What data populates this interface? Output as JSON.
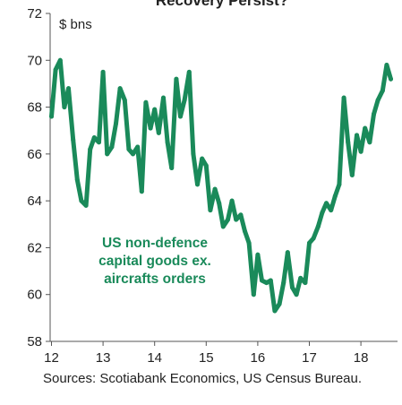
{
  "chart_data": {
    "type": "line",
    "title": "Recovery Persist?",
    "ylabel": "$ bns",
    "xlim": [
      12,
      18.67
    ],
    "ylim": [
      58,
      72
    ],
    "xticks": [
      12,
      13,
      14,
      15,
      16,
      17,
      18
    ],
    "xtick_labels": [
      "12",
      "13",
      "14",
      "15",
      "16",
      "17",
      "18"
    ],
    "yticks": [
      58,
      60,
      62,
      64,
      66,
      68,
      70,
      72
    ],
    "ytick_labels": [
      "58",
      "60",
      "62",
      "64",
      "66",
      "68",
      "70",
      "72"
    ],
    "annotation": [
      "US non-defence",
      "capital goods ex.",
      "aircrafts orders"
    ],
    "colors": {
      "line": "#1a8a5a",
      "annotation": "#1a8a5a",
      "axis": "#555555"
    },
    "grid": false,
    "series": [
      {
        "x": [
          12.0,
          12.08,
          12.17,
          12.25,
          12.33,
          12.42,
          12.5,
          12.58,
          12.67,
          12.75,
          12.83,
          12.92,
          13.0,
          13.08,
          13.17,
          13.25,
          13.33,
          13.42,
          13.5,
          13.58,
          13.67,
          13.75,
          13.83,
          13.92,
          14.0,
          14.08,
          14.17,
          14.25,
          14.33,
          14.42,
          14.5,
          14.58,
          14.67,
          14.75,
          14.83,
          14.92,
          15.0,
          15.08,
          15.17,
          15.25,
          15.33,
          15.42,
          15.5,
          15.58,
          15.67,
          15.75,
          15.83,
          15.92,
          16.0,
          16.08,
          16.17,
          16.25,
          16.33,
          16.42,
          16.5,
          16.58,
          16.67,
          16.75,
          16.83,
          16.92,
          17.0,
          17.08,
          17.17,
          17.25,
          17.33,
          17.42,
          17.5,
          17.58,
          17.67,
          17.75,
          17.83,
          17.92,
          18.0,
          18.08,
          18.17,
          18.25,
          18.33,
          18.42,
          18.5,
          18.58
        ],
        "values": [
          67.6,
          69.6,
          70.0,
          68.0,
          68.8,
          66.6,
          64.9,
          64.0,
          63.8,
          66.2,
          66.7,
          66.5,
          69.5,
          66.0,
          66.3,
          67.3,
          68.8,
          68.3,
          66.2,
          66.0,
          66.3,
          64.4,
          68.2,
          67.1,
          67.9,
          66.9,
          68.4,
          66.5,
          65.4,
          69.2,
          67.6,
          68.3,
          69.5,
          66.0,
          64.7,
          65.8,
          65.5,
          63.6,
          64.5,
          63.9,
          62.9,
          63.2,
          64.0,
          63.2,
          63.4,
          62.7,
          62.2,
          60.0,
          61.7,
          60.6,
          60.5,
          60.6,
          59.3,
          59.6,
          60.5,
          61.8,
          60.3,
          60.0,
          60.7,
          60.5,
          62.2,
          62.4,
          62.9,
          63.5,
          63.9,
          63.6,
          64.2,
          64.7,
          68.4,
          66.5,
          65.1,
          66.8,
          66.1,
          67.1,
          66.5,
          67.7,
          68.3,
          68.7,
          69.8,
          69.2
        ]
      }
    ]
  },
  "footer": {
    "sources": "Sources: Scotiabank Economics, US Census Bureau."
  }
}
